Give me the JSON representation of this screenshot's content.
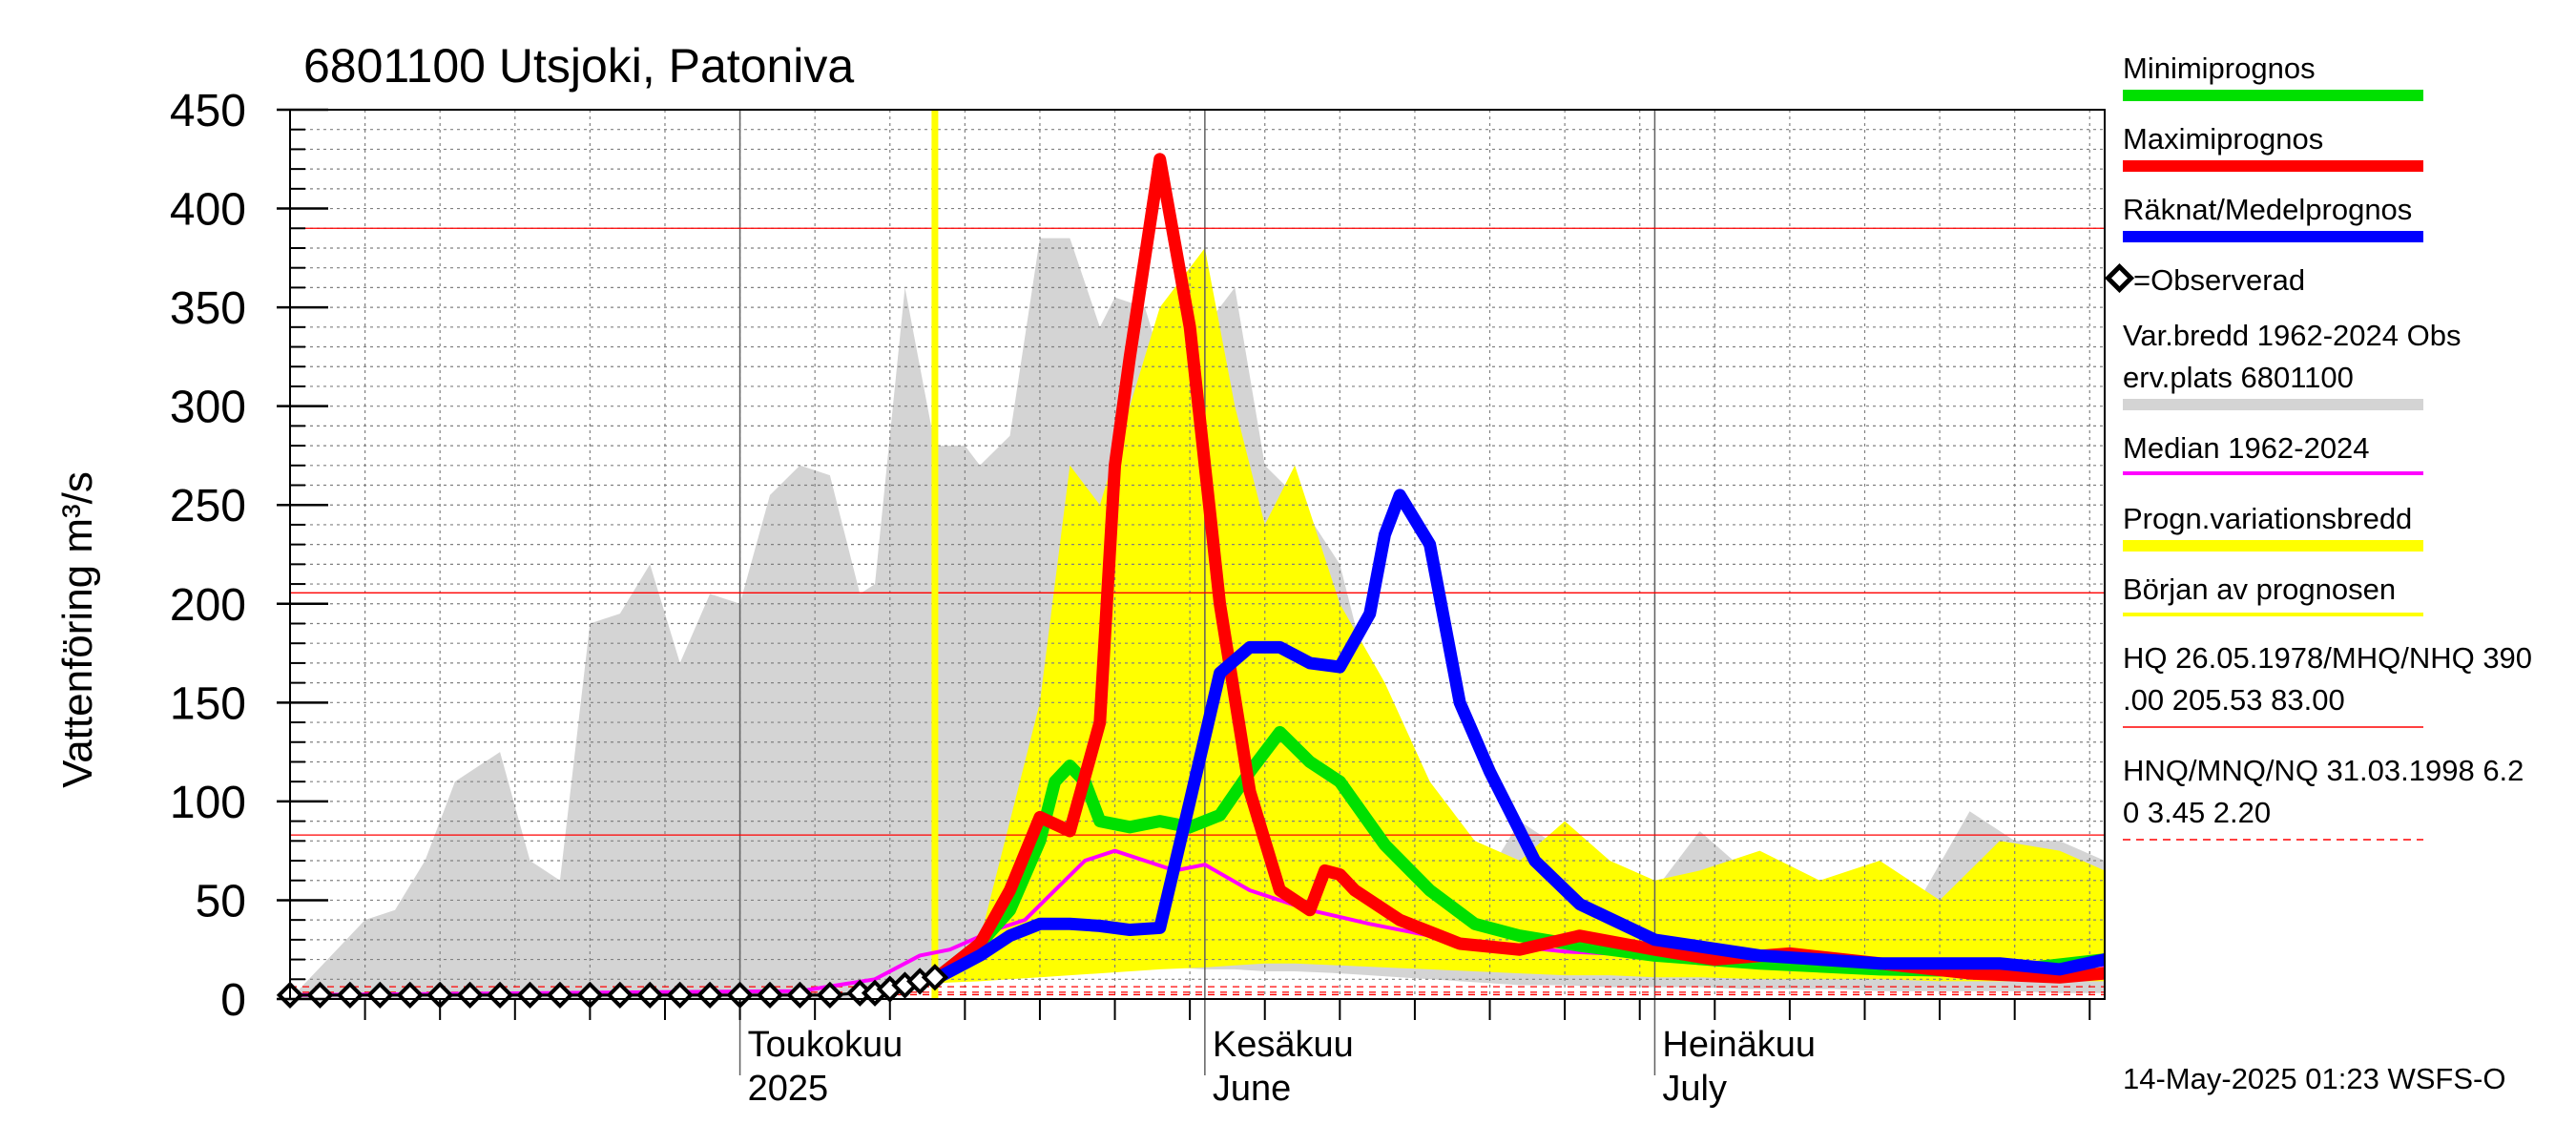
{
  "chart_data": {
    "type": "area",
    "title": "6801100 Utsjoki, Patoniva",
    "ylabel": "Vattenföring m³/s",
    "ylim": [
      0,
      450
    ],
    "yticks": [
      0,
      50,
      100,
      150,
      200,
      250,
      300,
      350,
      400,
      450
    ],
    "xlim": [
      "2025-04-01",
      "2025-07-31"
    ],
    "grid": true,
    "month_labels": [
      {
        "date": "2025-05-01",
        "line1": "Toukokuu",
        "line2": "2025"
      },
      {
        "date": "2025-06-01",
        "line1": "Kesäkuu",
        "line2": "June"
      },
      {
        "date": "2025-07-01",
        "line1": "Heinäkuu",
        "line2": "July"
      }
    ],
    "forecast_start": "2025-05-14",
    "reference_lines": {
      "HQ": 390.0,
      "MHQ": 205.53,
      "NHQ": 83.0,
      "HNQ": 6.2,
      "MNQ": 3.45,
      "NQ": 2.2
    },
    "series": [
      {
        "name": "Var.bredd 1962-2024",
        "kind": "band",
        "color": "#d4d4d4",
        "x": [
          "2025-04-01",
          "2025-04-06",
          "2025-04-08",
          "2025-04-10",
          "2025-04-12",
          "2025-04-15",
          "2025-04-17",
          "2025-04-19",
          "2025-04-21",
          "2025-04-23",
          "2025-04-25",
          "2025-04-27",
          "2025-04-29",
          "2025-05-01",
          "2025-05-03",
          "2025-05-05",
          "2025-05-07",
          "2025-05-09",
          "2025-05-10",
          "2025-05-12",
          "2025-05-14",
          "2025-05-16",
          "2025-05-17",
          "2025-05-19",
          "2025-05-21",
          "2025-05-23",
          "2025-05-25",
          "2025-05-26",
          "2025-05-28",
          "2025-05-30",
          "2025-06-01",
          "2025-06-03",
          "2025-06-05",
          "2025-06-07",
          "2025-06-10",
          "2025-06-12",
          "2025-06-14",
          "2025-06-16",
          "2025-06-18",
          "2025-06-20",
          "2025-06-22",
          "2025-06-25",
          "2025-06-28",
          "2025-07-01",
          "2025-07-04",
          "2025-07-07",
          "2025-07-10",
          "2025-07-13",
          "2025-07-16",
          "2025-07-19",
          "2025-07-22",
          "2025-07-25",
          "2025-07-28",
          "2025-07-31"
        ],
        "upper": [
          0,
          40,
          45,
          70,
          110,
          125,
          70,
          60,
          190,
          195,
          220,
          170,
          205,
          200,
          255,
          270,
          265,
          205,
          210,
          360,
          280,
          280,
          270,
          285,
          385,
          385,
          340,
          355,
          350,
          300,
          340,
          360,
          270,
          255,
          220,
          160,
          120,
          80,
          65,
          65,
          90,
          75,
          60,
          55,
          85,
          65,
          55,
          60,
          60,
          55,
          95,
          80,
          80,
          70
        ],
        "lower": [
          0,
          0,
          0,
          0,
          0,
          0,
          0,
          0,
          0,
          0,
          0,
          0,
          0,
          0,
          0,
          0,
          0,
          0,
          2,
          4,
          8,
          12,
          14,
          15,
          16,
          17,
          18,
          18,
          17,
          16,
          15,
          15,
          14,
          14,
          13,
          12,
          11,
          10,
          9,
          8,
          7,
          7,
          6,
          6,
          6,
          5,
          5,
          5,
          4,
          4,
          4,
          4,
          3,
          3
        ]
      },
      {
        "name": "Progn.variationsbredd",
        "kind": "band",
        "color": "#ffff00",
        "x": [
          "2025-05-14",
          "2025-05-17",
          "2025-05-19",
          "2025-05-21",
          "2025-05-23",
          "2025-05-25",
          "2025-05-27",
          "2025-05-29",
          "2025-06-01",
          "2025-06-03",
          "2025-06-05",
          "2025-06-07",
          "2025-06-10",
          "2025-06-13",
          "2025-06-16",
          "2025-06-19",
          "2025-06-22",
          "2025-06-25",
          "2025-06-28",
          "2025-07-01",
          "2025-07-04",
          "2025-07-08",
          "2025-07-12",
          "2025-07-16",
          "2025-07-20",
          "2025-07-24",
          "2025-07-28",
          "2025-07-31"
        ],
        "upper": [
          8,
          30,
          90,
          150,
          270,
          250,
          300,
          350,
          380,
          300,
          240,
          270,
          200,
          160,
          110,
          80,
          70,
          90,
          70,
          60,
          65,
          75,
          60,
          70,
          50,
          80,
          75,
          65
        ],
        "lower": [
          8,
          9,
          10,
          11,
          12,
          13,
          14,
          15,
          16,
          17,
          18,
          18,
          17,
          16,
          15,
          14,
          13,
          12,
          12,
          11,
          11,
          10,
          10,
          10,
          9,
          9,
          9,
          9
        ]
      },
      {
        "name": "Median 1962-2024",
        "kind": "line",
        "color": "#ff00ff",
        "x": [
          "2025-04-01",
          "2025-05-05",
          "2025-05-10",
          "2025-05-13",
          "2025-05-15",
          "2025-05-18",
          "2025-05-20",
          "2025-05-22",
          "2025-05-24",
          "2025-05-26",
          "2025-05-28",
          "2025-05-30",
          "2025-06-01",
          "2025-06-04",
          "2025-06-08",
          "2025-06-12",
          "2025-06-16",
          "2025-06-20",
          "2025-06-25",
          "2025-07-01",
          "2025-07-10",
          "2025-07-20",
          "2025-07-31"
        ],
        "y": [
          2,
          4,
          10,
          22,
          25,
          35,
          40,
          55,
          70,
          75,
          70,
          65,
          68,
          55,
          45,
          38,
          32,
          28,
          24,
          22,
          20,
          19,
          17
        ]
      },
      {
        "name": "Minimiprognos",
        "kind": "line",
        "color": "#00e000",
        "x": [
          "2025-05-14",
          "2025-05-17",
          "2025-05-19",
          "2025-05-21",
          "2025-05-22",
          "2025-05-23",
          "2025-05-24",
          "2025-05-25",
          "2025-05-27",
          "2025-05-29",
          "2025-05-31",
          "2025-06-02",
          "2025-06-04",
          "2025-06-06",
          "2025-06-08",
          "2025-06-10",
          "2025-06-13",
          "2025-06-16",
          "2025-06-19",
          "2025-06-22",
          "2025-06-26",
          "2025-07-01",
          "2025-07-08",
          "2025-07-16",
          "2025-07-24",
          "2025-07-31"
        ],
        "y": [
          10,
          28,
          45,
          80,
          110,
          118,
          110,
          90,
          87,
          90,
          87,
          93,
          115,
          135,
          120,
          110,
          78,
          55,
          38,
          32,
          27,
          22,
          18,
          15,
          14,
          20
        ]
      },
      {
        "name": "Maximiprognos",
        "kind": "line",
        "color": "#ff0000",
        "x": [
          "2025-05-14",
          "2025-05-17",
          "2025-05-19",
          "2025-05-21",
          "2025-05-23",
          "2025-05-25",
          "2025-05-26",
          "2025-05-27",
          "2025-05-29",
          "2025-05-31",
          "2025-06-02",
          "2025-06-04",
          "2025-06-06",
          "2025-06-08",
          "2025-06-09",
          "2025-06-10",
          "2025-06-11",
          "2025-06-14",
          "2025-06-18",
          "2025-06-22",
          "2025-06-26",
          "2025-07-01",
          "2025-07-05",
          "2025-07-10",
          "2025-07-16",
          "2025-07-22",
          "2025-07-28",
          "2025-07-31"
        ],
        "y": [
          10,
          28,
          55,
          92,
          85,
          140,
          270,
          325,
          425,
          340,
          200,
          105,
          55,
          45,
          65,
          63,
          55,
          40,
          28,
          25,
          32,
          25,
          20,
          23,
          18,
          13,
          11,
          13
        ]
      },
      {
        "name": "Räknat/Medelprognos",
        "kind": "line",
        "color": "#0000ff",
        "x": [
          "2025-05-14",
          "2025-05-17",
          "2025-05-19",
          "2025-05-21",
          "2025-05-23",
          "2025-05-25",
          "2025-05-27",
          "2025-05-29",
          "2025-05-31",
          "2025-06-02",
          "2025-06-04",
          "2025-06-06",
          "2025-06-08",
          "2025-06-10",
          "2025-06-12",
          "2025-06-13",
          "2025-06-14",
          "2025-06-16",
          "2025-06-18",
          "2025-06-20",
          "2025-06-23",
          "2025-06-26",
          "2025-07-01",
          "2025-07-08",
          "2025-07-16",
          "2025-07-24",
          "2025-07-28",
          "2025-07-31"
        ],
        "y": [
          10,
          22,
          32,
          38,
          38,
          37,
          35,
          36,
          100,
          165,
          178,
          178,
          170,
          168,
          195,
          235,
          255,
          230,
          150,
          115,
          70,
          48,
          30,
          22,
          18,
          18,
          15,
          20
        ]
      },
      {
        "name": "Observerad",
        "kind": "points",
        "color": "#000000",
        "x": [
          "2025-04-01",
          "2025-04-03",
          "2025-04-05",
          "2025-04-07",
          "2025-04-09",
          "2025-04-11",
          "2025-04-13",
          "2025-04-15",
          "2025-04-17",
          "2025-04-19",
          "2025-04-21",
          "2025-04-23",
          "2025-04-25",
          "2025-04-27",
          "2025-04-29",
          "2025-05-01",
          "2025-05-03",
          "2025-05-05",
          "2025-05-07",
          "2025-05-09",
          "2025-05-10",
          "2025-05-11",
          "2025-05-12",
          "2025-05-13",
          "2025-05-14"
        ],
        "y": [
          2,
          2,
          2,
          2,
          2,
          2,
          2,
          2,
          2,
          2,
          2,
          2,
          2,
          2,
          2,
          2,
          2,
          2,
          2,
          3,
          3,
          5,
          7,
          9,
          11
        ]
      }
    ]
  },
  "legend": {
    "min": "Minimiprognos",
    "max": "Maximiprognos",
    "med": "Räknat/Medelprognos",
    "obs": "=Observerad",
    "varbredd1": "Var.bredd 1962-2024   Obs",
    "varbredd2": "erv.plats 6801100",
    "median": "Median 1962-2024",
    "prognvar": "Progn.variationsbredd",
    "borjan": "Början av prognosen",
    "hq1": "HQ 26.05.1978/MHQ/NHQ 390",
    "hq2": ".00 205.53 83.00",
    "hnq1": "HNQ/MNQ/NQ 31.03.1998 6.2",
    "hnq2": "0 3.45 2.20"
  },
  "colors": {
    "hq_line": "#ff0000",
    "grid": "#808080",
    "forecast_start": "#ffff00"
  },
  "footer": "14-May-2025 01:23 WSFS-O"
}
